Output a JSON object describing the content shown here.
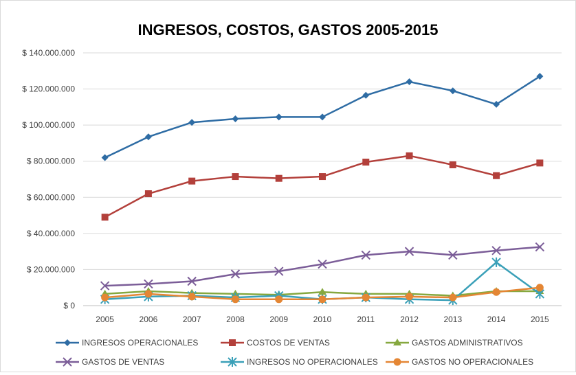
{
  "chart_data": {
    "type": "line",
    "title": "INGRESOS, COSTOS, GASTOS 2005-2015",
    "xlabel": "",
    "ylabel": "",
    "categories": [
      "2005",
      "2006",
      "2007",
      "2008",
      "2009",
      "2010",
      "2011",
      "2012",
      "2013",
      "2014",
      "2015"
    ],
    "ylim": [
      0,
      140000000
    ],
    "yticks": [
      0,
      20000000,
      40000000,
      60000000,
      80000000,
      100000000,
      120000000,
      140000000
    ],
    "ytick_labels": [
      "$ 0",
      "$ 20.000.000",
      "$ 40.000.000",
      "$ 60.000.000",
      "$ 80.000.000",
      "$ 100.000.000",
      "$ 120.000.000",
      "$ 140.000.000"
    ],
    "grid": true,
    "legend_position": "bottom",
    "series": [
      {
        "name": "INGRESOS OPERACIONALES",
        "color": "#2e6ca4",
        "marker": "diamond",
        "values": [
          82000000,
          93500000,
          101500000,
          103500000,
          104500000,
          104500000,
          116500000,
          124000000,
          119000000,
          111500000,
          127000000
        ]
      },
      {
        "name": "COSTOS DE VENTAS",
        "color": "#b3403b",
        "marker": "square",
        "values": [
          49000000,
          62000000,
          69000000,
          71500000,
          70500000,
          71500000,
          79500000,
          83000000,
          78000000,
          72000000,
          79000000
        ]
      },
      {
        "name": "GASTOS ADMINISTRATIVOS",
        "color": "#86a83f",
        "marker": "triangle",
        "values": [
          6500000,
          8000000,
          7000000,
          6500000,
          6000000,
          7500000,
          6500000,
          6500000,
          5500000,
          8000000,
          8000000
        ]
      },
      {
        "name": "GASTOS DE VENTAS",
        "color": "#7b5d98",
        "marker": "x",
        "values": [
          11000000,
          12000000,
          13500000,
          17500000,
          19000000,
          23000000,
          28000000,
          30000000,
          28000000,
          30500000,
          32500000
        ]
      },
      {
        "name": "INGRESOS NO OPERACIONALES",
        "color": "#3aa0b8",
        "marker": "star",
        "values": [
          3500000,
          5000000,
          5500000,
          4500000,
          5500000,
          3500000,
          4500000,
          3500000,
          3000000,
          24000000,
          6500000
        ]
      },
      {
        "name": "GASTOS NO OPERACIONALES",
        "color": "#e48634",
        "marker": "circle",
        "values": [
          4500000,
          6500000,
          5000000,
          3500000,
          3500000,
          3500000,
          4500000,
          5000000,
          4500000,
          7500000,
          10000000
        ]
      }
    ]
  }
}
